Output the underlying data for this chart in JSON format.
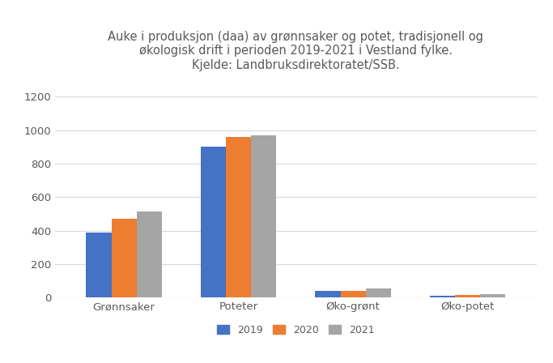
{
  "title": "Auke i produksjon (daa) av grønnsaker og potet, tradisjonell og\nøkologisk drift i perioden 2019-2021 i Vestland fylke.\nKjelde: Landbruksdirektoratet/SSB.",
  "categories": [
    "Grønnsaker",
    "Poteter",
    "Øko-grønt",
    "Øko-potet"
  ],
  "years": [
    "2019",
    "2020",
    "2021"
  ],
  "values": {
    "2019": [
      390,
      900,
      40,
      10
    ],
    "2020": [
      470,
      960,
      42,
      15
    ],
    "2021": [
      515,
      968,
      55,
      20
    ]
  },
  "colors": {
    "2019": "#4472C4",
    "2020": "#ED7D31",
    "2021": "#A5A5A5"
  },
  "ylim": [
    0,
    1300
  ],
  "yticks": [
    0,
    200,
    400,
    600,
    800,
    1000,
    1200
  ],
  "background_color": "#ffffff",
  "title_fontsize": 10.5,
  "title_color": "#595959",
  "tick_color": "#595959",
  "grid_color": "#d9d9d9",
  "bar_width": 0.22,
  "legend_fontsize": 9
}
